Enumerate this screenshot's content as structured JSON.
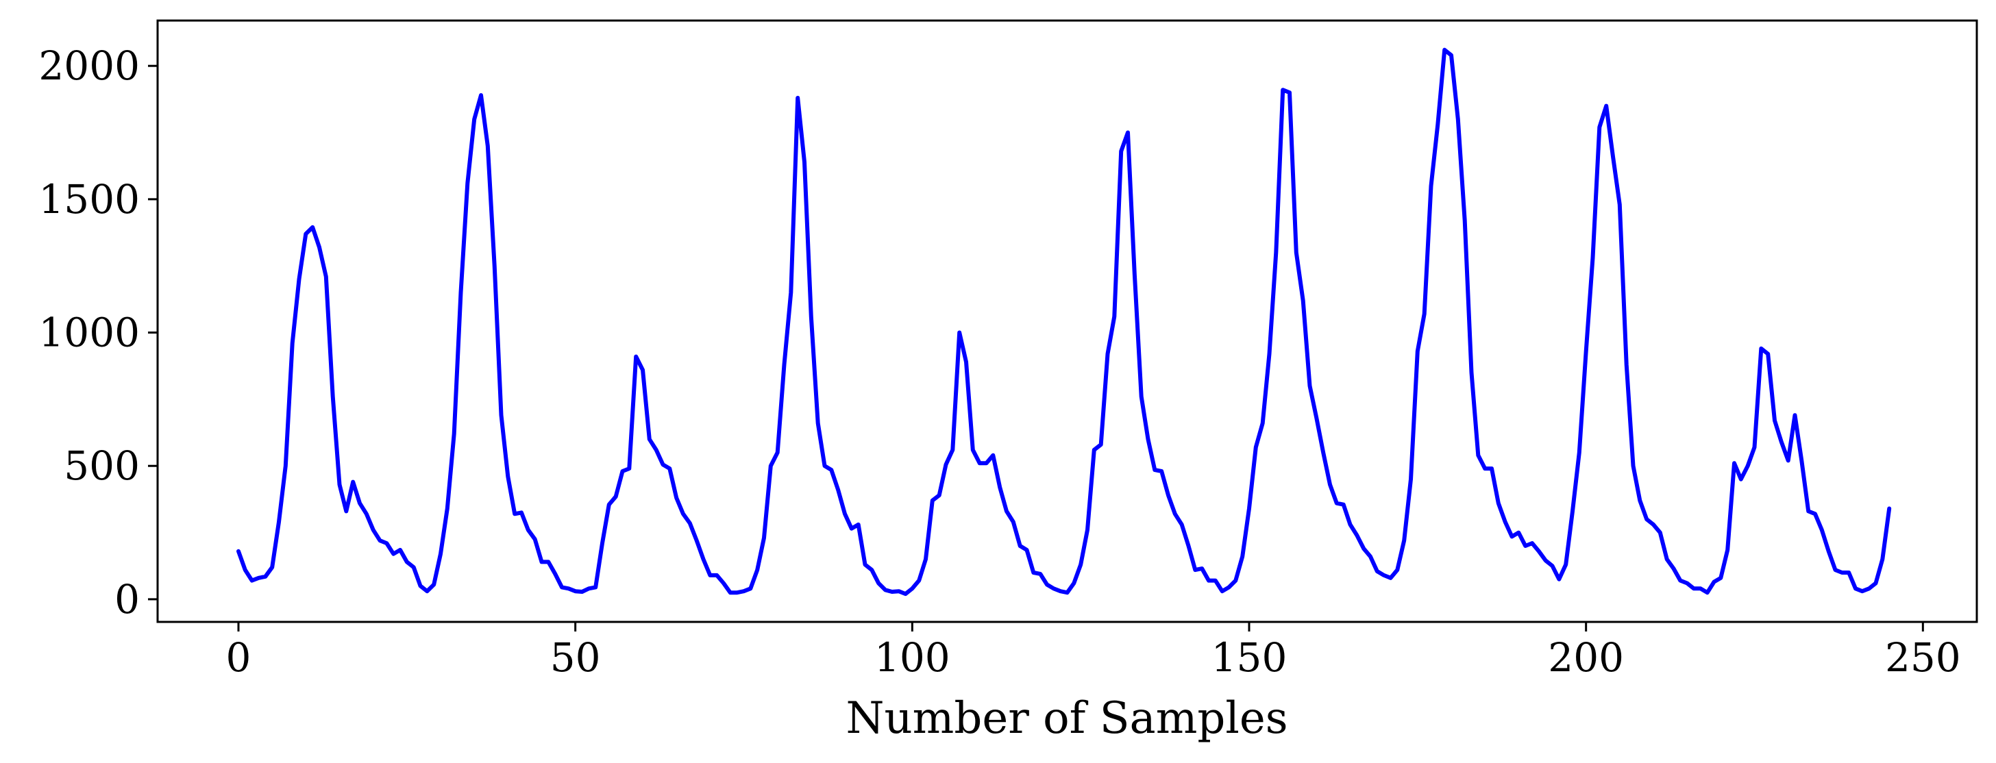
{
  "chart_data": {
    "type": "line",
    "title": "",
    "xlabel": "Number of Samples",
    "ylabel": "",
    "xlim": [
      -12,
      258
    ],
    "ylim": [
      -85,
      2170
    ],
    "xticks": [
      0,
      50,
      100,
      150,
      200,
      250
    ],
    "yticks": [
      0,
      500,
      1000,
      1500,
      2000
    ],
    "grid": false,
    "legend": "none",
    "series": [
      {
        "color": "#0000ff",
        "x": [
          0,
          1,
          2,
          3,
          4,
          5,
          6,
          7,
          8,
          9,
          10,
          11,
          12,
          13,
          14,
          15,
          16,
          17,
          18,
          19,
          20,
          21,
          22,
          23,
          24,
          25,
          26,
          27,
          28,
          29,
          30,
          31,
          32,
          33,
          34,
          35,
          36,
          37,
          38,
          39,
          40,
          41,
          42,
          43,
          44,
          45,
          46,
          47,
          48,
          49,
          50,
          51,
          52,
          53,
          54,
          55,
          56,
          57,
          58,
          59,
          60,
          61,
          62,
          63,
          64,
          65,
          66,
          67,
          68,
          69,
          70,
          71,
          72,
          73,
          74,
          75,
          76,
          77,
          78,
          79,
          80,
          81,
          82,
          83,
          84,
          85,
          86,
          87,
          88,
          89,
          90,
          91,
          92,
          93,
          94,
          95,
          96,
          97,
          98,
          99,
          100,
          101,
          102,
          103,
          104,
          105,
          106,
          107,
          108,
          109,
          110,
          111,
          112,
          113,
          114,
          115,
          116,
          117,
          118,
          119,
          120,
          121,
          122,
          123,
          124,
          125,
          126,
          127,
          128,
          129,
          130,
          131,
          132,
          133,
          134,
          135,
          136,
          137,
          138,
          139,
          140,
          141,
          142,
          143,
          144,
          145,
          146,
          147,
          148,
          149,
          150,
          151,
          152,
          153,
          154,
          155,
          156,
          157,
          158,
          159,
          160,
          161,
          162,
          163,
          164,
          165,
          166,
          167,
          168,
          169,
          170,
          171,
          172,
          173,
          174,
          175,
          176,
          177,
          178,
          179,
          180,
          181,
          182,
          183,
          184,
          185,
          186,
          187,
          188,
          189,
          190,
          191,
          192,
          193,
          194,
          195,
          196,
          197,
          198,
          199,
          200,
          201,
          202,
          203,
          204,
          205,
          206,
          207,
          208,
          209,
          210,
          211,
          212,
          213,
          214,
          215,
          216,
          217,
          218,
          219,
          220,
          221,
          222,
          223,
          224,
          225,
          226,
          227,
          228,
          229,
          230,
          231,
          232,
          233,
          234,
          235,
          236,
          237,
          238,
          239,
          240,
          241,
          242,
          243,
          244,
          245
        ],
        "y": [
          180,
          110,
          70,
          80,
          85,
          120,
          290,
          500,
          960,
          1200,
          1370,
          1395,
          1320,
          1210,
          760,
          430,
          330,
          440,
          360,
          320,
          260,
          220,
          210,
          170,
          185,
          140,
          120,
          50,
          30,
          55,
          170,
          340,
          620,
          1150,
          1560,
          1800,
          1890,
          1700,
          1250,
          690,
          460,
          320,
          325,
          260,
          225,
          140,
          140,
          95,
          45,
          40,
          30,
          28,
          40,
          45,
          210,
          355,
          385,
          480,
          490,
          910,
          860,
          600,
          560,
          505,
          490,
          380,
          320,
          285,
          220,
          150,
          90,
          90,
          60,
          25,
          25,
          30,
          40,
          110,
          230,
          500,
          550,
          880,
          1150,
          1880,
          1640,
          1060,
          660,
          500,
          485,
          410,
          320,
          265,
          280,
          130,
          110,
          60,
          35,
          28,
          30,
          20,
          40,
          70,
          150,
          370,
          390,
          505,
          560,
          1000,
          890,
          560,
          510,
          510,
          540,
          420,
          330,
          290,
          200,
          185,
          100,
          95,
          55,
          40,
          30,
          25,
          60,
          130,
          260,
          560,
          580,
          920,
          1060,
          1680,
          1750,
          1220,
          760,
          600,
          485,
          480,
          390,
          320,
          280,
          200,
          110,
          115,
          70,
          70,
          30,
          45,
          70,
          160,
          340,
          570,
          660,
          920,
          1300,
          1910,
          1900,
          1300,
          1120,
          800,
          680,
          550,
          430,
          360,
          355,
          280,
          240,
          190,
          160,
          105,
          90,
          80,
          110,
          220,
          450,
          930,
          1070,
          1550,
          1780,
          2060,
          2040,
          1800,
          1420,
          850,
          540,
          490,
          490,
          360,
          290,
          235,
          250,
          200,
          210,
          180,
          145,
          125,
          75,
          130,
          330,
          550,
          930,
          1280,
          1770,
          1850,
          1660,
          1480,
          880,
          500,
          370,
          300,
          280,
          250,
          150,
          115,
          70,
          60,
          40,
          40,
          25,
          65,
          80,
          185,
          510,
          450,
          500,
          570,
          940,
          920,
          670,
          590,
          520,
          690,
          520,
          330,
          320,
          260,
          180,
          110,
          100,
          100,
          40,
          30,
          40,
          60,
          150,
          340
        ]
      }
    ]
  }
}
